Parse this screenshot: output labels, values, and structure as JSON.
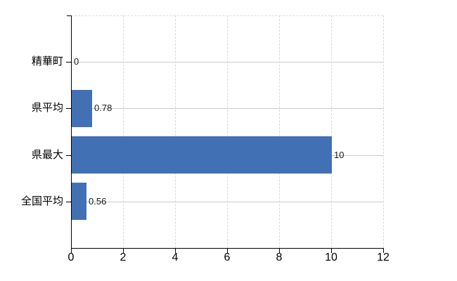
{
  "chart_data": {
    "type": "bar",
    "orientation": "horizontal",
    "title": "",
    "categories": [
      "精華町",
      "県平均",
      "県最大",
      "全国平均"
    ],
    "values": [
      0,
      0.78,
      10,
      0.56
    ],
    "value_labels": [
      "0",
      "0.78",
      "10",
      "0.56"
    ],
    "xlim": [
      0,
      12
    ],
    "x_ticks": [
      0,
      2,
      4,
      6,
      8,
      10,
      12
    ],
    "legend": "none",
    "grid": {
      "horizontal": "solid",
      "vertical": "dashed",
      "plot_border_top_right": "dashed"
    },
    "colors": {
      "bar": "#4170b5",
      "axis": "#000000",
      "grid_horizontal": "#c9cdc3",
      "grid_vertical": "#dcd8d7",
      "category_label": "#000000",
      "value_label": "#1a1a1a",
      "tick_label": "#000000",
      "background": "#ffffff"
    }
  }
}
